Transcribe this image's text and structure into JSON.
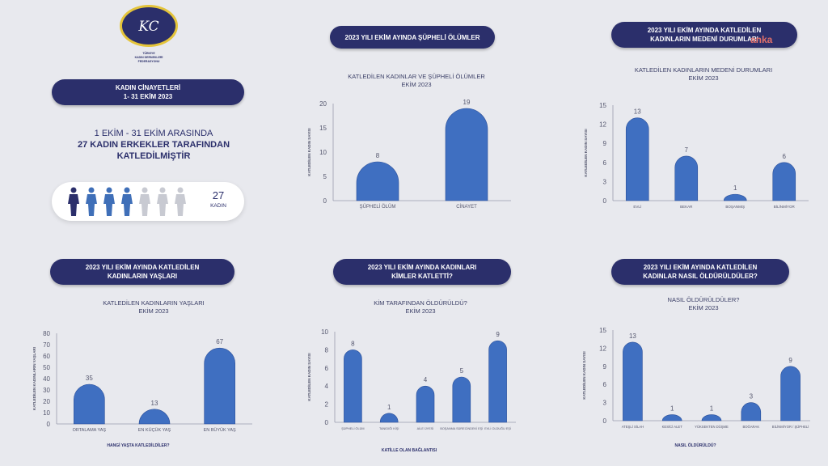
{
  "logo": {
    "monogram": "KC",
    "lines": [
      "TÜRKİYE",
      "KADIN DERNEKLERİ",
      "FEDERASYONU"
    ]
  },
  "left_pill": {
    "line1": "KADIN CİNAYETLERİ",
    "line2": "1- 31 EKİM 2023"
  },
  "headline": {
    "line1": "1 EKİM - 31 EKİM ARASINDA",
    "line2": "27 KADIN ERKEKLER TARAFINDAN",
    "line3": "KATLEDİLMİŞTİR"
  },
  "people": {
    "count": "27",
    "label": "KADIN",
    "total_icons": 7,
    "colors": [
      "#2b2f6b",
      "#3f6fb8",
      "#3f6fb8",
      "#3f6fb8",
      "#c8cad2",
      "#c8cad2",
      "#c8cad2"
    ]
  },
  "watermark": "anka",
  "colors": {
    "bar": "#3f6fc1",
    "bar_border": "#2a4f9a",
    "pill": "#2b2f6b",
    "axis": "#55576e",
    "background": "#e8e9ee"
  },
  "pills": {
    "p1": {
      "line1": "2023 YILI EKİM AYINDA ŞÜPHELİ ÖLÜMLER",
      "line2": ""
    },
    "p2": {
      "line1": "2023 YILI EKİM AYINDA KATLEDİLEN",
      "line2": "KADINLARIN MEDENİ DURUMLARI"
    },
    "p3": {
      "line1": "2023 YILI EKİM AYINDA KATLEDİLEN",
      "line2": "KADINLARIN YAŞLARI"
    },
    "p4": {
      "line1": "2023 YILI EKİM AYINDA KADINLARI",
      "line2": "KİMLER KATLETTİ?"
    },
    "p5": {
      "line1": "2023 YILI EKİM AYINDA KATLEDİLEN",
      "line2": "KADINLAR NASIL ÖLDÜRÜLDÜLER?"
    }
  },
  "chart_data": [
    {
      "id": "c1",
      "type": "bar",
      "title": "KATLEDİLEN KADINLAR VE ŞÜPHELİ ÖLÜMLER",
      "subtitle": "EKİM 2023",
      "ylabel": "KATLEDİLEN KADIN SAYISI",
      "xlabel": "",
      "categories": [
        "ŞÜPHELİ ÖLÜM",
        "CİNAYET"
      ],
      "values": [
        8,
        19
      ],
      "ylim": [
        0,
        20
      ],
      "yticks": [
        0,
        5,
        10,
        15,
        20
      ]
    },
    {
      "id": "c2",
      "type": "bar",
      "title": "KATLEDİLEN KADINLARIN MEDENİ DURUMLARI",
      "subtitle": "EKİM 2023",
      "ylabel": "KATLEDİLEN KADIN SAYISI",
      "xlabel": "",
      "categories": [
        "EVLİ",
        "BEKAR",
        "BOŞANMIŞ",
        "BİLİNMİYOR"
      ],
      "values": [
        13,
        7,
        1,
        6
      ],
      "ylim": [
        0,
        15
      ],
      "yticks": [
        0,
        3,
        6,
        9,
        12,
        15
      ]
    },
    {
      "id": "c3",
      "type": "bar",
      "title": "KATLEDİLEN KADINLARIN YAŞLARI",
      "subtitle": "EKİM 2023",
      "ylabel": "KATLEDİLEN KADINLARIN YAŞLARI",
      "xlabel": "HANGİ YAŞTA KATLEDİLDİLER?",
      "categories": [
        "ORTALAMA YAŞ",
        "EN KÜÇÜK YAŞ",
        "EN BÜYÜK YAŞ"
      ],
      "values": [
        35,
        13,
        67
      ],
      "ylim": [
        0,
        80
      ],
      "yticks": [
        0,
        10,
        20,
        30,
        40,
        50,
        60,
        70,
        80
      ]
    },
    {
      "id": "c4",
      "type": "bar",
      "title": "KİM TARAFINDAN ÖLDÜRÜLDÜ?",
      "subtitle": "EKİM 2023",
      "ylabel": "KATLEDİLEN KADIN SAYISI",
      "xlabel": "KATİLLE OLAN BAĞLANTISI",
      "categories": [
        "ŞÜPHELİ ÖLÜM",
        "TANIDIĞI KİŞİ",
        "AİLE ÜYESİ",
        "BOŞANMA SÜRECİNDEKİ EŞİ",
        "EVLİ OLDUĞU EŞİ"
      ],
      "values": [
        8,
        1,
        4,
        5,
        9
      ],
      "ylim": [
        0,
        10
      ],
      "yticks": [
        0,
        2,
        4,
        6,
        8,
        10
      ]
    },
    {
      "id": "c5",
      "type": "bar",
      "title": "NASIL ÖLDÜRÜLDÜLER?",
      "subtitle": "EKİM 2023",
      "ylabel": "KATLEDİLEN KADIN SAYISI",
      "xlabel": "NASIL ÖLDÜRÜLDÜ?",
      "categories": [
        "ATEŞLİ SİLAH",
        "KESİCİ ALET",
        "YÜKSEKTEN DÜŞME",
        "BOĞARAK",
        "BİLİNMİYOR / ŞÜPHELİ"
      ],
      "values": [
        13,
        1,
        1,
        3,
        9
      ],
      "ylim": [
        0,
        15
      ],
      "yticks": [
        0,
        3,
        6,
        9,
        12,
        15
      ]
    }
  ]
}
